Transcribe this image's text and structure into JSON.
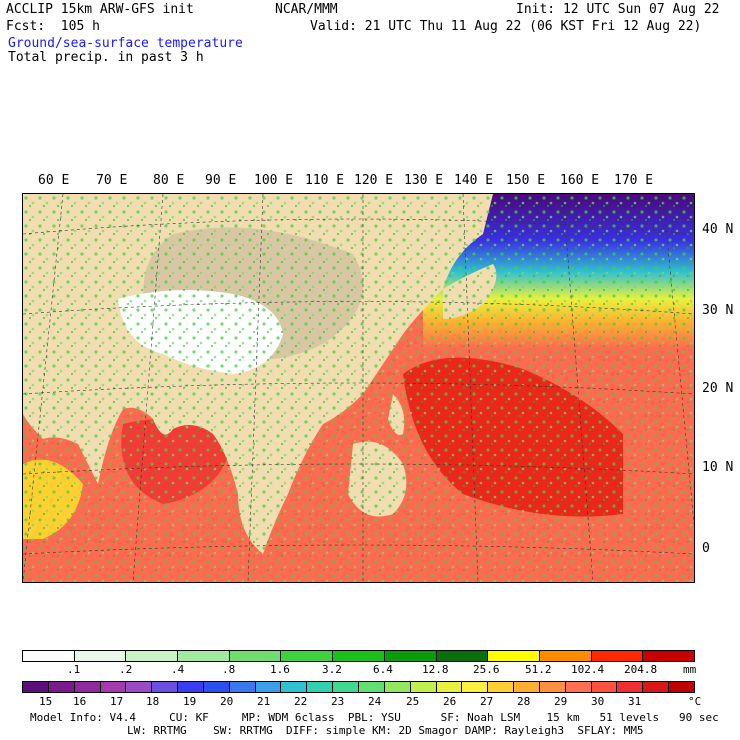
{
  "header": {
    "model_line": "ACCLIP 15km ARW-GFS init",
    "center": "NCAR/MMM",
    "init": "Init: 12 UTC Sun 07 Aug 22",
    "fcst": "Fcst:  105 h",
    "valid": "Valid: 21 UTC Thu 11 Aug 22 (06 KST Fri 12 Aug 22)",
    "field1": "Ground/sea-surface temperature",
    "field2": "Total precip. in past 3 h"
  },
  "map": {
    "lon_labels": [
      "60 E",
      "70 E",
      "80 E",
      "90 E",
      "100 E",
      "110 E",
      "120 E",
      "130 E",
      "140 E",
      "150 E",
      "160 E",
      "170 E"
    ],
    "lat_labels": [
      "40 N",
      "30 N",
      "20 N",
      "10 N",
      "0"
    ]
  },
  "precip_scale": {
    "labels": [
      ".1",
      ".2",
      ".4",
      ".8",
      "1.6",
      "3.2",
      "6.4",
      "12.8",
      "25.6",
      "51.2",
      "102.4",
      "204.8"
    ],
    "unit": "mm",
    "colors": [
      "#ffffff",
      "#e9f9e9",
      "#c9f2c9",
      "#a0eaa0",
      "#6fde6f",
      "#3fd23f",
      "#18c018",
      "#0a9a0a",
      "#0a700a",
      "#ffff00",
      "#ff8c00",
      "#ff2a00",
      "#c80000"
    ]
  },
  "temp_scale": {
    "labels": [
      "15",
      "16",
      "17",
      "18",
      "19",
      "20",
      "21",
      "22",
      "23",
      "24",
      "25",
      "26",
      "27",
      "28",
      "29",
      "30",
      "31"
    ],
    "unit": "°C",
    "colors": [
      "#5a0f7a",
      "#7a1a8c",
      "#8f2a9e",
      "#a43ab0",
      "#9a4cc8",
      "#6a4fe0",
      "#3c3cf0",
      "#2a50f0",
      "#3a78f0",
      "#3aa0e8",
      "#30c0d0",
      "#30d0b0",
      "#40d890",
      "#60e070",
      "#90e860",
      "#c0f050",
      "#e8f040",
      "#fff040",
      "#ffd030",
      "#ffb030",
      "#ff9040",
      "#ff7050",
      "#ff5040",
      "#f03030",
      "#d81818",
      "#c00000"
    ]
  },
  "footer": {
    "line1": "Model Info: V4.4     CU: KF     MP: WDM 6class  PBL: YSU      SF: Noah LSM    15 km   51 levels   90 sec",
    "line2": "LW: RRTMG    SW: RRTMG  DIFF: simple KM: 2D Smagor DAMP: Rayleigh3  SFLAY: MM5"
  }
}
